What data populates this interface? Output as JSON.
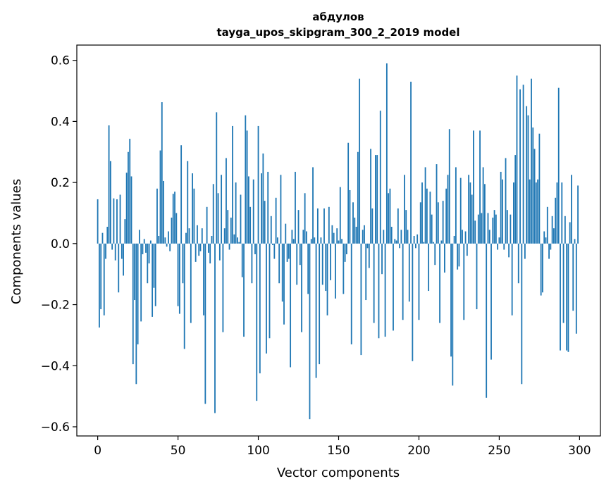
{
  "chart_data": {
    "type": "bar",
    "title": "абдулов",
    "subtitle": "tayga_upos_skipgram_300_2_2019 model",
    "xlabel": "Vector components",
    "ylabel": "Components values",
    "xlim": [
      -13,
      313
    ],
    "ylim": [
      -0.63,
      0.65
    ],
    "xticks": [
      0,
      50,
      100,
      150,
      200,
      250,
      300
    ],
    "xtick_labels": [
      "0",
      "50",
      "100",
      "150",
      "200",
      "250",
      "300"
    ],
    "yticks": [
      -0.6,
      -0.4,
      -0.2,
      0.0,
      0.2,
      0.4,
      0.6
    ],
    "ytick_labels": [
      "−0.6",
      "−0.4",
      "−0.2",
      "0.0",
      "0.2",
      "0.4",
      "0.6"
    ],
    "grid": false,
    "legend": "none",
    "bar_color": "#1f77b4",
    "x": "0..299",
    "values": [
      0.145,
      -0.275,
      -0.215,
      0.035,
      -0.235,
      -0.05,
      0.055,
      0.387,
      0.27,
      -0.02,
      0.148,
      -0.055,
      0.145,
      -0.16,
      0.16,
      -0.05,
      -0.105,
      0.08,
      0.232,
      0.3,
      0.343,
      0.22,
      -0.395,
      -0.185,
      -0.46,
      -0.33,
      0.045,
      -0.255,
      -0.035,
      0.015,
      -0.03,
      -0.13,
      -0.065,
      0.01,
      -0.24,
      -0.145,
      -0.205,
      0.18,
      0.025,
      0.305,
      0.463,
      0.205,
      0.02,
      -0.01,
      0.04,
      -0.025,
      0.085,
      0.163,
      0.17,
      0.1,
      -0.205,
      -0.23,
      0.322,
      -0.13,
      -0.345,
      0.035,
      0.27,
      0.05,
      -0.26,
      0.23,
      0.18,
      -0.06,
      0.06,
      -0.04,
      -0.025,
      0.05,
      -0.235,
      -0.525,
      0.12,
      -0.03,
      -0.065,
      0.025,
      0.195,
      -0.555,
      0.43,
      0.165,
      -0.055,
      0.225,
      -0.29,
      0.05,
      0.28,
      0.11,
      -0.02,
      0.085,
      0.385,
      0.03,
      0.2,
      0.02,
      0.005,
      0.16,
      -0.11,
      -0.305,
      0.42,
      0.37,
      0.22,
      0.12,
      -0.13,
      0.21,
      -0.035,
      -0.515,
      0.385,
      -0.425,
      0.23,
      0.295,
      0.14,
      -0.36,
      0.235,
      -0.31,
      0.09,
      -0.005,
      -0.05,
      0.15,
      0.02,
      -0.13,
      0.225,
      -0.19,
      -0.265,
      0.065,
      -0.06,
      -0.05,
      -0.405,
      0.045,
      0.015,
      0.235,
      -0.135,
      0.11,
      -0.07,
      -0.29,
      0.045,
      0.165,
      0.04,
      -0.165,
      -0.575,
      0.015,
      0.25,
      0.02,
      -0.44,
      0.115,
      -0.395,
      0.02,
      -0.135,
      0.115,
      -0.155,
      -0.235,
      0.12,
      -0.12,
      0.06,
      0.035,
      -0.18,
      0.05,
      0.01,
      0.185,
      0.015,
      -0.165,
      -0.06,
      -0.035,
      0.33,
      0.175,
      -0.33,
      0.135,
      0.085,
      0.055,
      0.3,
      0.54,
      -0.365,
      0.045,
      0.06,
      -0.185,
      -0.015,
      -0.08,
      0.31,
      0.115,
      -0.26,
      0.29,
      0.29,
      -0.31,
      0.435,
      -0.1,
      0.045,
      -0.305,
      0.59,
      0.165,
      0.18,
      0.055,
      -0.285,
      0.015,
      0.01,
      0.115,
      -0.015,
      0.045,
      -0.25,
      0.225,
      0.11,
      0.045,
      -0.19,
      0.53,
      -0.385,
      0.025,
      -0.015,
      0.03,
      -0.25,
      0.135,
      0.2,
      0.005,
      0.25,
      0.18,
      -0.155,
      0.17,
      0.095,
      0.005,
      -0.07,
      0.26,
      0.135,
      -0.26,
      0.01,
      0.14,
      -0.095,
      0.18,
      0.225,
      0.375,
      -0.37,
      -0.465,
      0.025,
      0.25,
      -0.085,
      -0.075,
      0.215,
      0.045,
      -0.25,
      0.04,
      -0.04,
      0.225,
      0.2,
      0.16,
      0.37,
      0.075,
      -0.215,
      0.095,
      0.37,
      0.1,
      0.25,
      0.195,
      -0.505,
      0.1,
      0.045,
      -0.38,
      0.085,
      0.11,
      0.095,
      -0.02,
      0.02,
      0.235,
      0.21,
      -0.02,
      0.28,
      0.11,
      -0.045,
      0.095,
      -0.235,
      0.2,
      0.29,
      0.55,
      -0.13,
      0.505,
      -0.46,
      0.52,
      -0.05,
      0.45,
      0.42,
      0.21,
      0.54,
      0.38,
      0.31,
      0.2,
      0.21,
      0.36,
      -0.17,
      -0.16,
      0.04,
      0.02,
      0.12,
      -0.05,
      -0.02,
      0.09,
      0.05,
      0.15,
      0.2,
      0.51,
      -0.35,
      0.2,
      -0.26,
      0.09,
      -0.35,
      -0.355,
      0.07,
      0.225,
      -0.22,
      0.015,
      -0.295,
      0.19
    ]
  }
}
